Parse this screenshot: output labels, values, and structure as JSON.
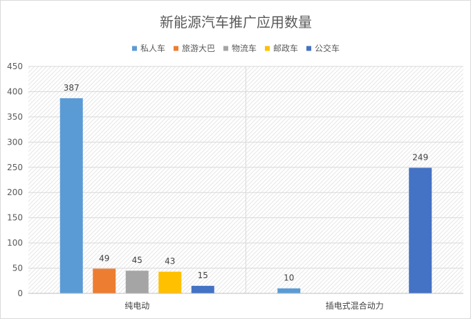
{
  "chart_data": {
    "type": "bar",
    "title": "新能源汽车推广应用数量",
    "xlabel": "",
    "ylabel": "",
    "categories": [
      "纯电动",
      "插电式混合动力"
    ],
    "series": [
      {
        "name": "私人车",
        "color": "#5b9bd5",
        "values": [
          387,
          10
        ]
      },
      {
        "name": "旅游大巴",
        "color": "#ed7d31",
        "values": [
          49,
          null
        ]
      },
      {
        "name": "物流车",
        "color": "#a5a5a5",
        "values": [
          45,
          null
        ]
      },
      {
        "name": "邮政车",
        "color": "#ffc000",
        "values": [
          43,
          null
        ]
      },
      {
        "name": "公交车",
        "color": "#4472c4",
        "values": [
          15,
          249
        ]
      }
    ],
    "ylim": [
      0,
      450
    ],
    "yticks": [
      0,
      50,
      100,
      150,
      200,
      250,
      300,
      350,
      400,
      450
    ],
    "grid": true,
    "legend_position": "top",
    "data_labels": true
  }
}
